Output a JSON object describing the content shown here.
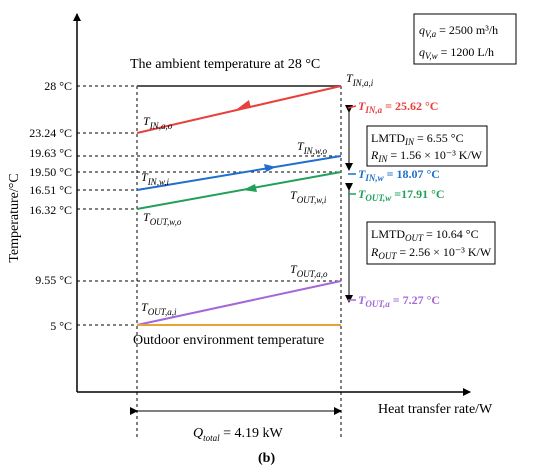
{
  "figure_label": "(b)",
  "axes": {
    "ylabel": "Temperature/°C",
    "xlabel": "Heat transfer rate/W"
  },
  "ticks": [
    "28 °C",
    "23.24 °C",
    "19.63 °C",
    "19.50 °C",
    "16.51 °C",
    "16.32 °C",
    "9.55 °C",
    "5 °C"
  ],
  "texts": {
    "ambient": "The ambient temperature at 28 °C",
    "outdoor": "Outdoor environment temperature",
    "q_total": "= 4.19 kW"
  },
  "flow_box": {
    "qva": "= 2500 m³/h",
    "qvw": "= 1200 L/h"
  },
  "lmtd_in": {
    "line1": "= 6.55 °C",
    "line2": "= 1.56 × 10⁻³ K/W"
  },
  "lmtd_out": {
    "line1": "= 10.64 °C",
    "line2": "= 2.56 × 10⁻³ K/W"
  },
  "results": {
    "tin_a": "= 25.62 °C",
    "tin_w": "= 18.07 °C",
    "tout_w": "=17.91 °C",
    "tout_a": "= 7.27 °C"
  },
  "colors": {
    "ambient_line": "#555555",
    "indoor_air": "#e8403c",
    "indoor_water": "#1f6fd1",
    "outdoor_water": "#22a05a",
    "outdoor_air": "#a566d6",
    "outdoor_env": "#e8a23a"
  },
  "chart_data": {
    "type": "line",
    "xlabel": "Heat transfer rate/W",
    "ylabel": "Temperature/°C",
    "x": [
      0,
      4.19
    ],
    "series": [
      {
        "name": "",
        "x": [
          0,
          4.19
        ],
        "values": [
          28,
          28
        ]
      },
      {
        "name": "",
        "x": [
          0,
          4.19
        ],
        "values": [
          23.24,
          28
        ]
      },
      {
        "name": "",
        "x": [
          0,
          4.19
        ],
        "values": [
          16.51,
          19.63
        ]
      },
      {
        "name": "",
        "x": [
          0,
          4.19
        ],
        "values": [
          16.32,
          19.5
        ]
      },
      {
        "name": "",
        "x": [
          0,
          4.19
        ],
        "values": [
          5,
          9.55
        ]
      },
      {
        "name": "",
        "x": [
          0,
          4.19
        ],
        "values": [
          5,
          5
        ]
      }
    ]
  }
}
